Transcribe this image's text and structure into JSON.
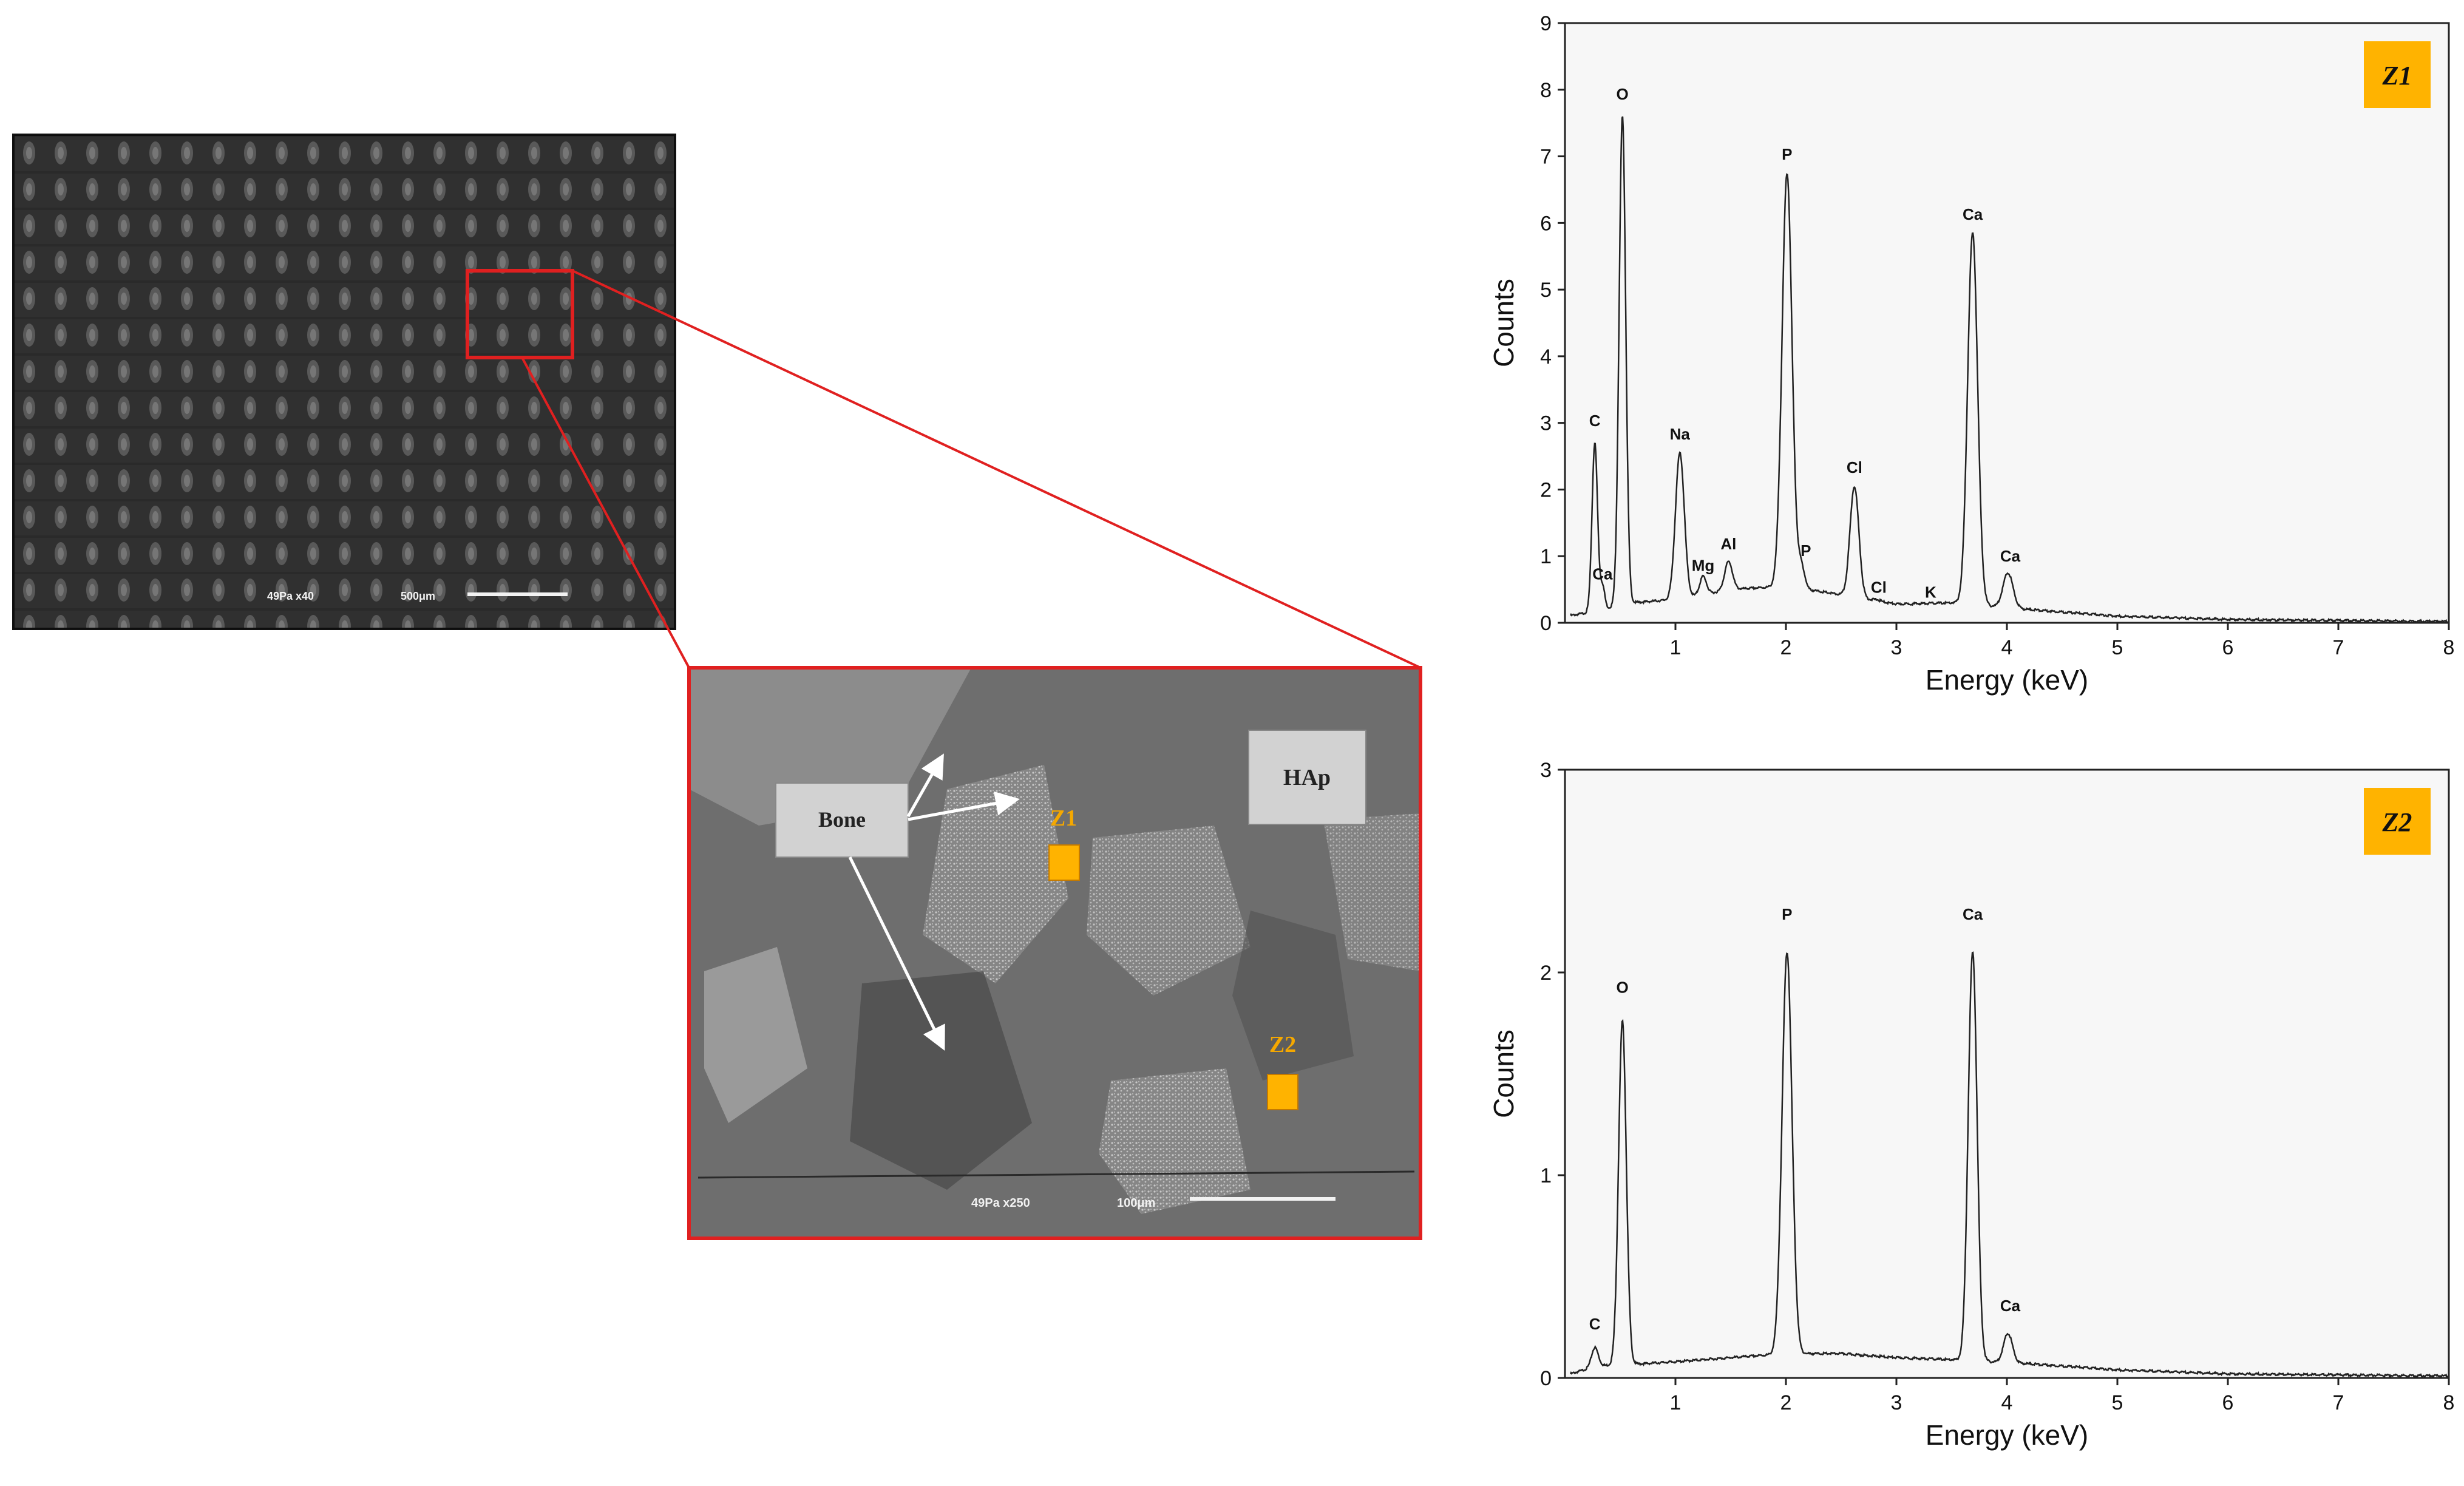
{
  "colors": {
    "highlight": "#e02020",
    "zone_marker": "#ffb300",
    "zone_text": "#f5a800",
    "sem_dark": "#3a3a3a",
    "spectrum_line": "#222222",
    "chart_background": "#f7f7f7"
  },
  "sem_overview": {
    "scale_text": "49Pa  x40",
    "scale_bar_label": "500μm"
  },
  "sem_detail": {
    "labels": {
      "bone": "Bone",
      "hap": "HAp",
      "z1": "Z1",
      "z2": "Z2"
    },
    "scale_text": "49Pa  x250",
    "scale_bar_label": "100μm"
  },
  "chart_data": [
    {
      "type": "line",
      "title": "",
      "panel_tag": "Z1",
      "xlabel": "Energy (keV)",
      "ylabel": "Counts",
      "xlim": [
        0,
        8
      ],
      "ylim": [
        0,
        9
      ],
      "xticks": [
        1,
        2,
        3,
        4,
        5,
        6,
        7,
        8
      ],
      "yticks": [
        0,
        1,
        2,
        3,
        4,
        5,
        6,
        7,
        8,
        9
      ],
      "grid": false,
      "baseline": [
        [
          0.02,
          0.1
        ],
        [
          0.2,
          0.15
        ],
        [
          0.6,
          0.3
        ],
        [
          1.0,
          0.35
        ],
        [
          1.5,
          0.5
        ],
        [
          2.0,
          0.55
        ],
        [
          2.5,
          0.42
        ],
        [
          3.0,
          0.28
        ],
        [
          3.5,
          0.3
        ],
        [
          4.2,
          0.2
        ],
        [
          5.0,
          0.1
        ],
        [
          6.0,
          0.05
        ],
        [
          8.0,
          0.02
        ]
      ],
      "peaks": [
        {
          "x": 0.27,
          "y": 2.7,
          "w": 0.025
        },
        {
          "x": 0.34,
          "y": 0.55,
          "w": 0.02
        },
        {
          "x": 0.52,
          "y": 7.6,
          "w": 0.03
        },
        {
          "x": 1.04,
          "y": 2.55,
          "w": 0.04
        },
        {
          "x": 1.25,
          "y": 0.7,
          "w": 0.03
        },
        {
          "x": 1.48,
          "y": 0.92,
          "w": 0.035
        },
        {
          "x": 2.01,
          "y": 6.75,
          "w": 0.045
        },
        {
          "x": 2.14,
          "y": 0.85,
          "w": 0.03
        },
        {
          "x": 2.62,
          "y": 2.05,
          "w": 0.04
        },
        {
          "x": 2.82,
          "y": 0.35,
          "w": 0.03
        },
        {
          "x": 3.31,
          "y": 0.25,
          "w": 0.03
        },
        {
          "x": 3.69,
          "y": 5.85,
          "w": 0.045
        },
        {
          "x": 4.01,
          "y": 0.75,
          "w": 0.045
        }
      ],
      "annotations": [
        {
          "label": "C",
          "x": 0.27,
          "y": 2.95
        },
        {
          "label": "Ca",
          "x": 0.34,
          "y": 0.65
        },
        {
          "label": "O",
          "x": 0.52,
          "y": 7.85
        },
        {
          "label": "Na",
          "x": 1.04,
          "y": 2.75
        },
        {
          "label": "Mg",
          "x": 1.25,
          "y": 0.78
        },
        {
          "label": "Al",
          "x": 1.48,
          "y": 1.1
        },
        {
          "label": "P",
          "x": 2.01,
          "y": 6.95
        },
        {
          "label": "P",
          "x": 2.18,
          "y": 1.0
        },
        {
          "label": "Cl",
          "x": 2.62,
          "y": 2.25
        },
        {
          "label": "Cl",
          "x": 2.84,
          "y": 0.45
        },
        {
          "label": "K",
          "x": 3.31,
          "y": 0.38
        },
        {
          "label": "Ca",
          "x": 3.69,
          "y": 6.05
        },
        {
          "label": "Ca",
          "x": 4.03,
          "y": 0.92
        }
      ]
    },
    {
      "type": "line",
      "title": "",
      "panel_tag": "Z2",
      "xlabel": "Energy (keV)",
      "ylabel": "Counts",
      "xlim": [
        0,
        8
      ],
      "ylim": [
        0,
        3
      ],
      "xticks": [
        1,
        2,
        3,
        4,
        5,
        6,
        7,
        8
      ],
      "yticks": [
        0,
        1,
        2,
        3
      ],
      "grid": false,
      "baseline": [
        [
          0.05,
          0.02
        ],
        [
          0.3,
          0.06
        ],
        [
          0.7,
          0.07
        ],
        [
          1.0,
          0.08
        ],
        [
          1.5,
          0.1
        ],
        [
          2.0,
          0.12
        ],
        [
          2.5,
          0.12
        ],
        [
          3.0,
          0.1
        ],
        [
          3.5,
          0.09
        ],
        [
          4.2,
          0.07
        ],
        [
          5.0,
          0.04
        ],
        [
          6.0,
          0.02
        ],
        [
          8.0,
          0.01
        ]
      ],
      "peaks": [
        {
          "x": 0.27,
          "y": 0.15,
          "w": 0.03
        },
        {
          "x": 0.52,
          "y": 1.76,
          "w": 0.035
        },
        {
          "x": 2.01,
          "y": 2.1,
          "w": 0.045
        },
        {
          "x": 3.69,
          "y": 2.1,
          "w": 0.04
        },
        {
          "x": 4.01,
          "y": 0.22,
          "w": 0.04
        }
      ],
      "annotations": [
        {
          "label": "C",
          "x": 0.27,
          "y": 0.24
        },
        {
          "label": "O",
          "x": 0.52,
          "y": 1.9
        },
        {
          "label": "P",
          "x": 2.01,
          "y": 2.26
        },
        {
          "label": "Ca",
          "x": 3.69,
          "y": 2.26
        },
        {
          "label": "Ca",
          "x": 4.03,
          "y": 0.33
        }
      ]
    }
  ]
}
